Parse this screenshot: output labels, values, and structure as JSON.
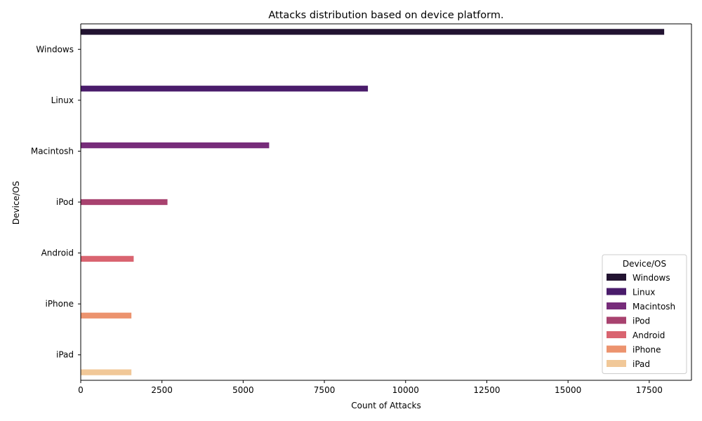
{
  "chart_data": {
    "type": "bar",
    "orientation": "horizontal",
    "title": "Attacks distribution based on device platform.",
    "xlabel": "Count of Attacks",
    "ylabel": "Device/OS",
    "xlim": [
      0,
      18800
    ],
    "xticks": [
      0,
      2500,
      5000,
      7500,
      10000,
      12500,
      15000,
      17500
    ],
    "xtick_labels": [
      "0",
      "2500",
      "5000",
      "7500",
      "10000",
      "12500",
      "15000",
      "17500"
    ],
    "categories": [
      "Windows",
      "Linux",
      "Macintosh",
      "iPod",
      "Android",
      "iPhone",
      "iPad"
    ],
    "series": [
      {
        "name": "Windows",
        "color": "#221331",
        "values": [
          17960,
          null,
          null,
          null,
          null,
          null,
          null
        ]
      },
      {
        "name": "Linux",
        "color": "#4a1c6b",
        "values": [
          null,
          8840,
          null,
          null,
          null,
          null,
          null
        ]
      },
      {
        "name": "Macintosh",
        "color": "#772c7a",
        "values": [
          null,
          null,
          5800,
          null,
          null,
          null,
          null
        ]
      },
      {
        "name": "iPod",
        "color": "#a8426f",
        "values": [
          null,
          null,
          null,
          2670,
          null,
          null,
          null
        ]
      },
      {
        "name": "Android",
        "color": "#d96470",
        "values": [
          null,
          null,
          null,
          null,
          1630,
          null,
          null
        ]
      },
      {
        "name": "iPhone",
        "color": "#ec936e",
        "values": [
          null,
          null,
          null,
          null,
          null,
          1560,
          null
        ]
      },
      {
        "name": "iPad",
        "color": "#f1c898",
        "values": [
          null,
          null,
          null,
          null,
          null,
          null,
          1560
        ]
      }
    ],
    "legend": {
      "title": "Device/OS",
      "position": "lower-right"
    },
    "grid": false
  }
}
